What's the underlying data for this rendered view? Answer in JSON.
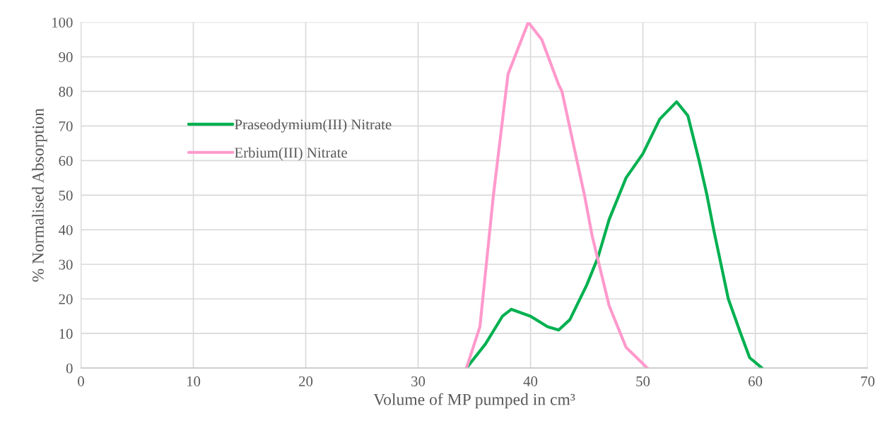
{
  "chart_data": {
    "type": "line",
    "xlabel": "Volume of MP pumped in cm³",
    "ylabel": "% Normalised Absorption",
    "xlim": [
      0,
      70
    ],
    "xticks": [
      0,
      10,
      20,
      30,
      40,
      50,
      60,
      70
    ],
    "ylim": [
      0,
      100
    ],
    "yticks": [
      0,
      10,
      20,
      30,
      40,
      50,
      60,
      70,
      80,
      90,
      100
    ],
    "grid": true,
    "legend": "left",
    "marker": "none",
    "line_style": "solid",
    "series": [
      {
        "name": "Praseodymium(III) Nitrate",
        "color": "#00b050",
        "x": [
          34.3,
          36,
          37.5,
          38.3,
          40,
          41.5,
          42.5,
          43.5,
          45,
          46,
          47,
          48.5,
          50,
          51.5,
          53,
          54,
          55,
          55.7,
          56.3,
          57.6,
          58.7,
          59.5,
          60.6
        ],
        "values": [
          0,
          7,
          15,
          17,
          15,
          12,
          11,
          14,
          24,
          32,
          43,
          55,
          62,
          72,
          77,
          73,
          60,
          50,
          40,
          20,
          10,
          3,
          0
        ]
      },
      {
        "name": "Erbium(III) Nitrate",
        "color": "#ff99cc",
        "x": [
          34.3,
          35.5,
          36.7,
          38,
          39.8,
          41,
          42.5,
          42.8,
          44,
          44.8,
          45.5,
          47,
          48.5,
          50.4
        ],
        "values": [
          0,
          12,
          50,
          85,
          100,
          95,
          82,
          80,
          62,
          50,
          38,
          18,
          6,
          0
        ]
      }
    ]
  }
}
